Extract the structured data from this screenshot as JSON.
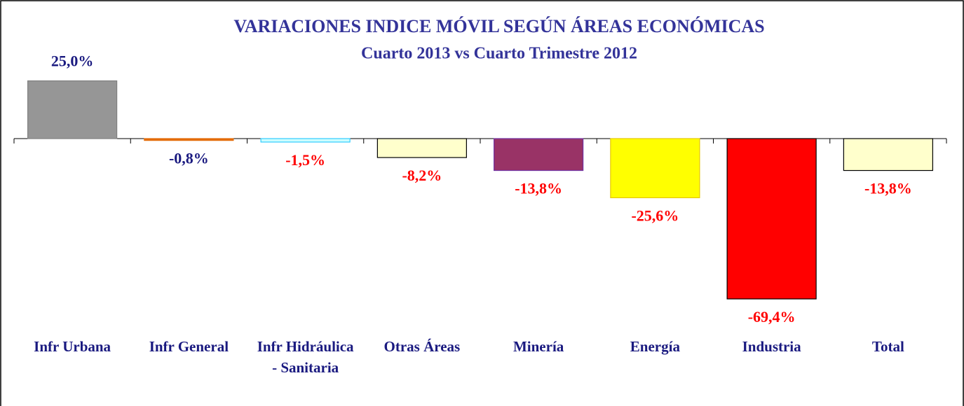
{
  "chart_data": {
    "type": "bar",
    "title": "VARIACIONES INDICE MÓVIL SEGÚN ÁREAS ECONÓMICAS",
    "subtitle": "Cuarto 2013 vs Cuarto Trimestre 2012",
    "categories": [
      "Infr Urbana",
      "Infr General",
      "Infr Hidráulica - Sanitaria",
      "Otras Áreas",
      "Minería",
      "Energía",
      "Industria",
      "Total"
    ],
    "values": [
      25.0,
      -0.8,
      -1.5,
      -8.2,
      -13.8,
      -25.6,
      -69.4,
      -13.8
    ],
    "value_labels": [
      "25,0%",
      "-0,8%",
      "-1,5%",
      "-8,2%",
      "-13,8%",
      "-25,6%",
      "-69,4%",
      "-13,8%"
    ],
    "colors": [
      "#969696",
      "#e36c09",
      "#ccffff",
      "#ffffcc",
      "#993366",
      "#ffff00",
      "#ff0000",
      "#ffffcc"
    ],
    "label_colors": [
      "#1a1a80",
      "#1a1a80",
      "#ff0000",
      "#ff0000",
      "#ff0000",
      "#ff0000",
      "#ff0000",
      "#ff0000"
    ]
  }
}
